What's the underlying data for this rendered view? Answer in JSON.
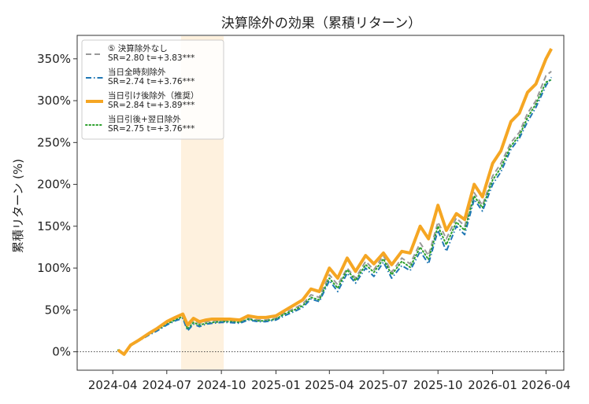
{
  "chart_data": {
    "type": "line",
    "title": "決算除外の効果（累積リターン）",
    "xlabel": "",
    "ylabel": "累積リターン (%)",
    "x_ticks": [
      "2024-04",
      "2024-07",
      "2024-10",
      "2025-01",
      "2025-04",
      "2025-07",
      "2025-10",
      "2026-01",
      "2026-04"
    ],
    "x_range": [
      "2024-02",
      "2026-05"
    ],
    "y_ticks": [
      "0%",
      "50%",
      "100%",
      "150%",
      "200%",
      "250%",
      "300%",
      "350%"
    ],
    "ylim": [
      -22,
      378
    ],
    "grid": false,
    "zero_line": true,
    "legend_position": "top-left",
    "highlight_band": {
      "x_start": "2024-07-25",
      "x_end": "2024-10-05",
      "color": "#fdebd0"
    },
    "x": [
      "2024-04-10",
      "2024-04-20",
      "2024-05-01",
      "2024-05-15",
      "2024-06-01",
      "2024-06-15",
      "2024-07-01",
      "2024-07-15",
      "2024-07-28",
      "2024-08-05",
      "2024-08-15",
      "2024-08-25",
      "2024-09-05",
      "2024-09-15",
      "2024-10-01",
      "2024-10-15",
      "2024-11-01",
      "2024-11-15",
      "2024-12-01",
      "2024-12-15",
      "2025-01-01",
      "2025-01-15",
      "2025-02-01",
      "2025-02-15",
      "2025-03-01",
      "2025-03-15",
      "2025-04-01",
      "2025-04-15",
      "2025-05-01",
      "2025-05-15",
      "2025-06-01",
      "2025-06-15",
      "2025-07-01",
      "2025-07-15",
      "2025-08-01",
      "2025-08-15",
      "2025-09-01",
      "2025-09-15",
      "2025-10-01",
      "2025-10-15",
      "2025-11-01",
      "2025-11-15",
      "2025-12-01",
      "2025-12-15",
      "2026-01-01",
      "2026-01-15",
      "2026-02-01",
      "2026-02-15",
      "2026-03-01",
      "2026-03-15",
      "2026-04-01",
      "2026-04-10"
    ],
    "series": [
      {
        "name": "⑤ 決算除外なし",
        "legend_stats": "SR=2.80 t=+3.83***",
        "color": "#999999",
        "style": "dashed",
        "width": 2,
        "values": [
          2,
          -3,
          8,
          14,
          22,
          28,
          35,
          40,
          44,
          30,
          38,
          34,
          36,
          37,
          37,
          37,
          36,
          40,
          38,
          38,
          40,
          46,
          52,
          57,
          68,
          65,
          92,
          80,
          100,
          88,
          108,
          98,
          115,
          95,
          112,
          105,
          130,
          115,
          155,
          135,
          160,
          150,
          190,
          175,
          210,
          225,
          250,
          262,
          285,
          300,
          330,
          335
        ]
      },
      {
        "name": "当日全時刻除外",
        "legend_stats": "SR=2.74 t=+3.76***",
        "color": "#1f77b4",
        "style": "dashdot",
        "width": 2,
        "values": [
          2,
          -3,
          7,
          13,
          20,
          25,
          32,
          37,
          40,
          25,
          33,
          30,
          33,
          34,
          35,
          35,
          34,
          38,
          36,
          36,
          38,
          43,
          48,
          53,
          63,
          60,
          85,
          72,
          94,
          82,
          100,
          90,
          107,
          88,
          103,
          97,
          120,
          105,
          145,
          120,
          150,
          140,
          182,
          168,
          200,
          215,
          242,
          255,
          275,
          292,
          318,
          328
        ]
      },
      {
        "name": "当日引け後除外（推奨）",
        "legend_stats": "SR=2.84 t=+3.89***",
        "color": "#f5a623",
        "style": "solid",
        "width": 4,
        "values": [
          2,
          -3,
          8,
          14,
          22,
          28,
          36,
          41,
          45,
          32,
          40,
          36,
          38,
          39,
          39,
          39,
          38,
          43,
          41,
          41,
          43,
          49,
          56,
          62,
          75,
          72,
          100,
          88,
          112,
          96,
          115,
          105,
          118,
          104,
          120,
          118,
          150,
          135,
          175,
          145,
          165,
          158,
          200,
          185,
          225,
          240,
          275,
          285,
          310,
          320,
          350,
          362
        ]
      },
      {
        "name": "当日引後+翌日除外",
        "legend_stats": "SR=2.75 t=+3.76***",
        "color": "#2ca02c",
        "style": "dotted",
        "width": 2,
        "values": [
          2,
          -3,
          7,
          13,
          21,
          26,
          33,
          38,
          42,
          27,
          35,
          32,
          34,
          35,
          36,
          36,
          35,
          39,
          37,
          37,
          39,
          45,
          50,
          55,
          65,
          62,
          88,
          76,
          98,
          85,
          104,
          95,
          111,
          92,
          108,
          101,
          125,
          110,
          150,
          128,
          155,
          145,
          186,
          172,
          205,
          220,
          246,
          258,
          280,
          296,
          322,
          325
        ]
      }
    ]
  }
}
